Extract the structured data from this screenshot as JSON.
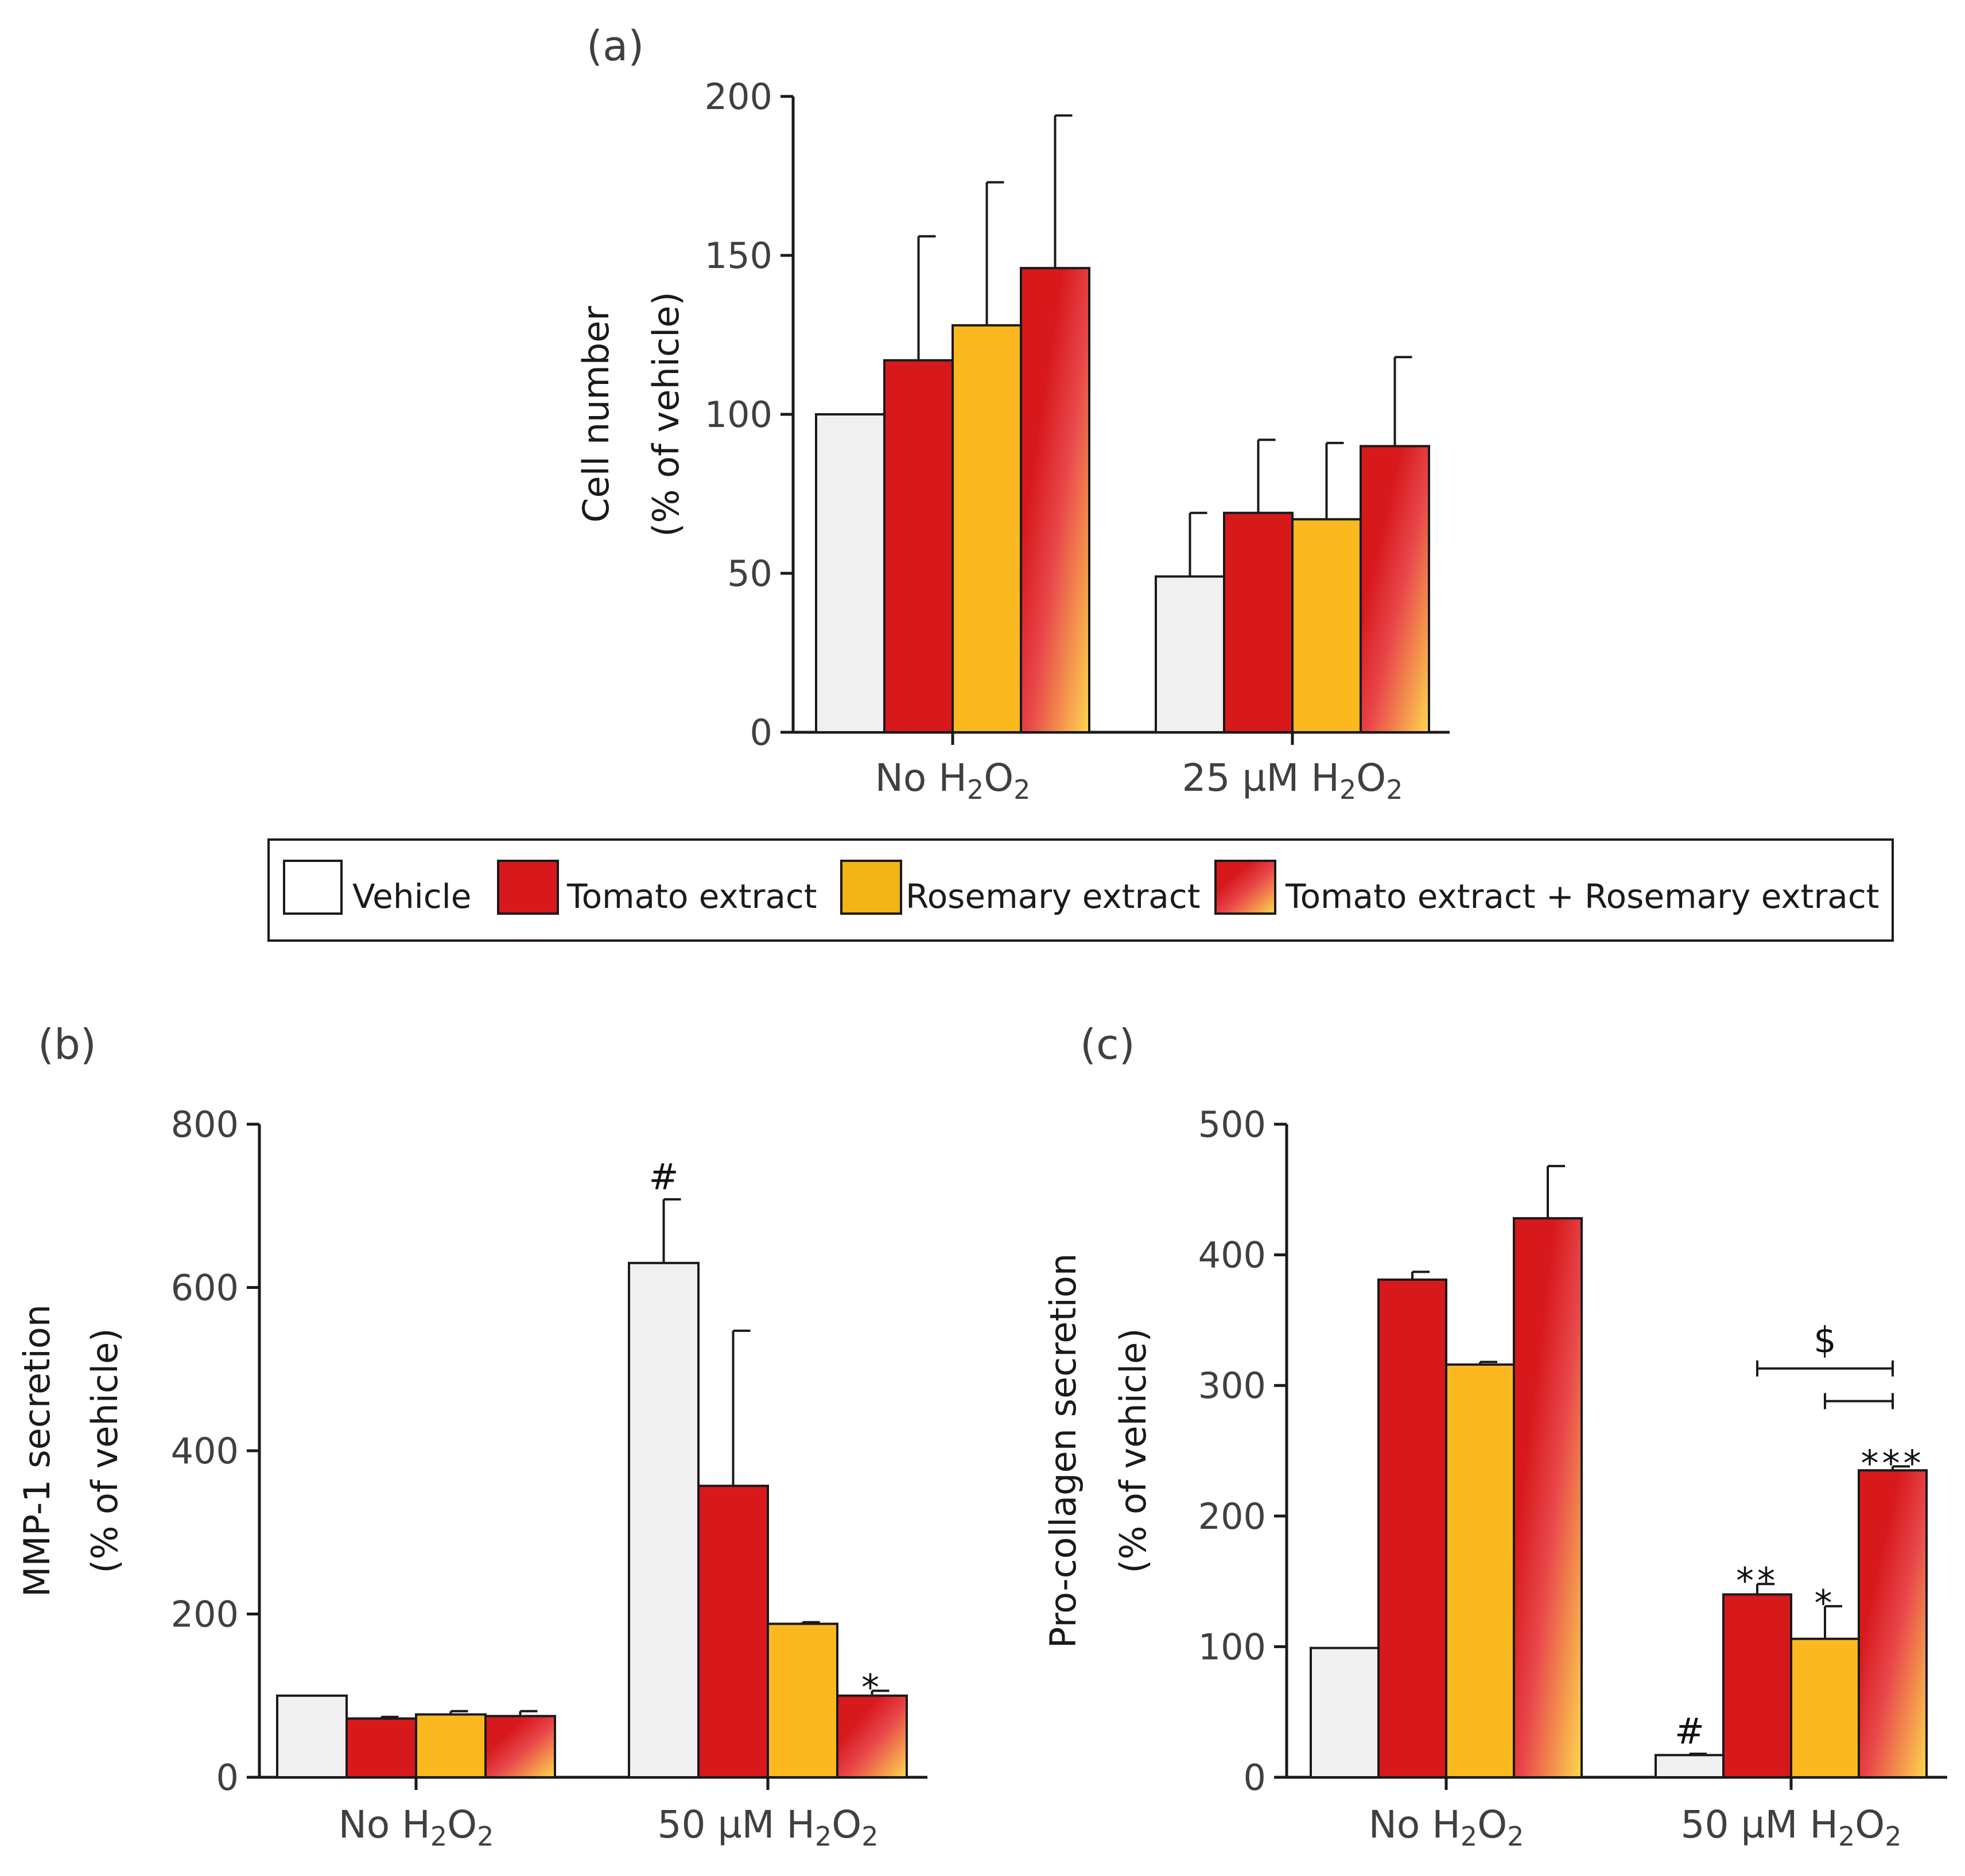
{
  "legend": {
    "items": [
      {
        "label": "Vehicle",
        "color": "#f0f0f0"
      },
      {
        "label": "Tomato extract",
        "color": "#d7191c"
      },
      {
        "label": "Rosemary extract",
        "color": "#fbb81f"
      },
      {
        "label": "Tomato extract + Rosemary extract",
        "gradient": [
          "#d7191c",
          "#fdd84f"
        ]
      }
    ]
  },
  "chart_data": [
    {
      "panel": "(a)",
      "type": "bar",
      "ylabel": "Cell number",
      "ylabel2": "(% of vehicle)",
      "ylim": [
        0,
        200
      ],
      "yticks": [
        "0",
        "50",
        "100",
        "150",
        "200"
      ],
      "groups": [
        {
          "label": "No H",
          "sub1": "2",
          "mid": "O",
          "sub2": "2"
        },
        {
          "label": "25 µM H",
          "sub1": "2",
          "mid": "O",
          "sub2": "2"
        }
      ],
      "series": [
        {
          "name": "Vehicle",
          "values": [
            100,
            49
          ],
          "errors": [
            0,
            20
          ]
        },
        {
          "name": "Tomato extract",
          "values": [
            117,
            69
          ],
          "errors": [
            39,
            23
          ]
        },
        {
          "name": "Rosemary extract",
          "values": [
            128,
            67
          ],
          "errors": [
            45,
            24
          ]
        },
        {
          "name": "Tomato extract + Rosemary extract",
          "values": [
            146,
            90
          ],
          "errors": [
            48,
            28
          ]
        }
      ],
      "annotations": []
    },
    {
      "panel": "(b)",
      "type": "bar",
      "ylabel": "MMP-1 secretion",
      "ylabel2": "(% of vehicle)",
      "ylim": [
        0,
        800
      ],
      "yticks": [
        "0",
        "200",
        "400",
        "600",
        "800"
      ],
      "groups": [
        {
          "label": "No H",
          "sub1": "2",
          "mid": "O",
          "sub2": "2"
        },
        {
          "label": "50 µM H",
          "sub1": "2",
          "mid": "O",
          "sub2": "2"
        }
      ],
      "series": [
        {
          "name": "Vehicle",
          "values": [
            100,
            630
          ],
          "errors": [
            0,
            78
          ]
        },
        {
          "name": "Tomato extract",
          "values": [
            72,
            357
          ],
          "errors": [
            2,
            190
          ]
        },
        {
          "name": "Rosemary extract",
          "values": [
            77,
            188
          ],
          "errors": [
            4,
            2
          ]
        },
        {
          "name": "Tomato extract + Rosemary extract",
          "values": [
            75,
            100
          ],
          "errors": [
            6,
            6
          ]
        }
      ],
      "annotations": [
        {
          "text": "#",
          "group": 1,
          "series": 0
        },
        {
          "text": "*",
          "group": 1,
          "series": 3
        }
      ]
    },
    {
      "panel": "(c)",
      "type": "bar",
      "ylabel": "Pro-collagen secretion",
      "ylabel2": "(% of vehicle)",
      "ylim": [
        0,
        500
      ],
      "yticks": [
        "0",
        "100",
        "200",
        "300",
        "400",
        "500"
      ],
      "groups": [
        {
          "label": "No H",
          "sub1": "2",
          "mid": "O",
          "sub2": "2"
        },
        {
          "label": "50 µM H",
          "sub1": "2",
          "mid": "O",
          "sub2": "2"
        }
      ],
      "series": [
        {
          "name": "Vehicle",
          "values": [
            99,
            17
          ],
          "errors": [
            0,
            1
          ]
        },
        {
          "name": "Tomato extract",
          "values": [
            381,
            140
          ],
          "errors": [
            6,
            8
          ]
        },
        {
          "name": "Rosemary extract",
          "values": [
            316,
            106
          ],
          "errors": [
            2,
            25
          ]
        },
        {
          "name": "Tomato extract + Rosemary extract",
          "values": [
            428,
            235
          ],
          "errors": [
            40,
            3
          ]
        }
      ],
      "annotations": [
        {
          "text": "#",
          "group": 1,
          "series": 0
        },
        {
          "text": "**",
          "group": 1,
          "series": 1
        },
        {
          "text": "*",
          "group": 1,
          "series": 2
        },
        {
          "text": "***",
          "group": 1,
          "series": 3
        }
      ],
      "brackets": [
        {
          "label": "$",
          "from_series": 1,
          "to_series": 3,
          "value": 313
        },
        {
          "label": "",
          "from_series": 2,
          "to_series": 3,
          "value": 288
        }
      ]
    }
  ]
}
